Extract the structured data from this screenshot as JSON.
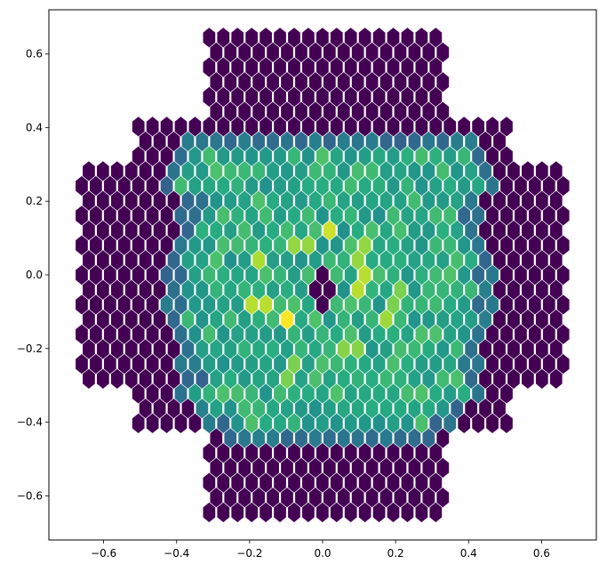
{
  "chart_data": {
    "type": "heatmap",
    "subtype": "hexbin",
    "title": "",
    "xlabel": "",
    "ylabel": "",
    "xlim": [
      -0.75,
      0.75
    ],
    "ylim": [
      -0.72,
      0.72
    ],
    "xticks": [
      -0.6,
      -0.4,
      -0.2,
      0.0,
      0.2,
      0.4,
      0.6
    ],
    "yticks": [
      -0.6,
      -0.4,
      -0.2,
      0.0,
      0.2,
      0.4,
      0.6
    ],
    "xtick_labels": [
      "−0.6",
      "−0.4",
      "−0.2",
      "0.0",
      "0.2",
      "0.4",
      "0.6"
    ],
    "ytick_labels": [
      "−0.6",
      "−0.4",
      "−0.2",
      "0.0",
      "0.2",
      "0.4",
      "0.6"
    ],
    "colormap": "viridis",
    "grid": false,
    "hex_spacing_x": 0.0388,
    "hex_spacing_y": 0.0403,
    "hex_columns_x": [
      -0.66,
      0.66
    ],
    "hex_rows_y": [
      -0.645,
      0.645
    ],
    "footprint_rows": [
      {
        "y_min": 0.44,
        "x_limit": 0.33
      },
      {
        "y_min": 0.3,
        "x_limit": 0.52
      },
      {
        "y_min": 0.0,
        "x_limit": 0.67
      }
    ],
    "active_region": {
      "top_y": 0.37,
      "bottom_y": -0.47,
      "max_x": 0.46,
      "taper_start_y": 0.22
    },
    "central_hole": {
      "x": 0.0,
      "y": -0.045,
      "radius": 0.05
    },
    "hot_spots": [
      {
        "x": -0.1,
        "y": -0.125,
        "value": 1.0
      },
      {
        "x": 0.01,
        "y": 0.13,
        "value": 0.93
      },
      {
        "x": -0.165,
        "y": -0.085,
        "value": 0.9
      },
      {
        "x": 0.1,
        "y": -0.02,
        "value": 0.9
      },
      {
        "x": -0.18,
        "y": 0.03,
        "value": 0.88
      },
      {
        "x": 0.17,
        "y": -0.12,
        "value": 0.86
      },
      {
        "x": 0.1,
        "y": 0.06,
        "value": 0.84
      },
      {
        "x": -0.06,
        "y": 0.08,
        "value": 0.84
      },
      {
        "x": 0.08,
        "y": -0.2,
        "value": 0.82
      },
      {
        "x": -0.08,
        "y": -0.26,
        "value": 0.8
      },
      {
        "x": 0.2,
        "y": -0.06,
        "value": 0.8
      }
    ],
    "background_value": 0.0,
    "active_base_value": 0.5,
    "edge_value": 0.32
  }
}
